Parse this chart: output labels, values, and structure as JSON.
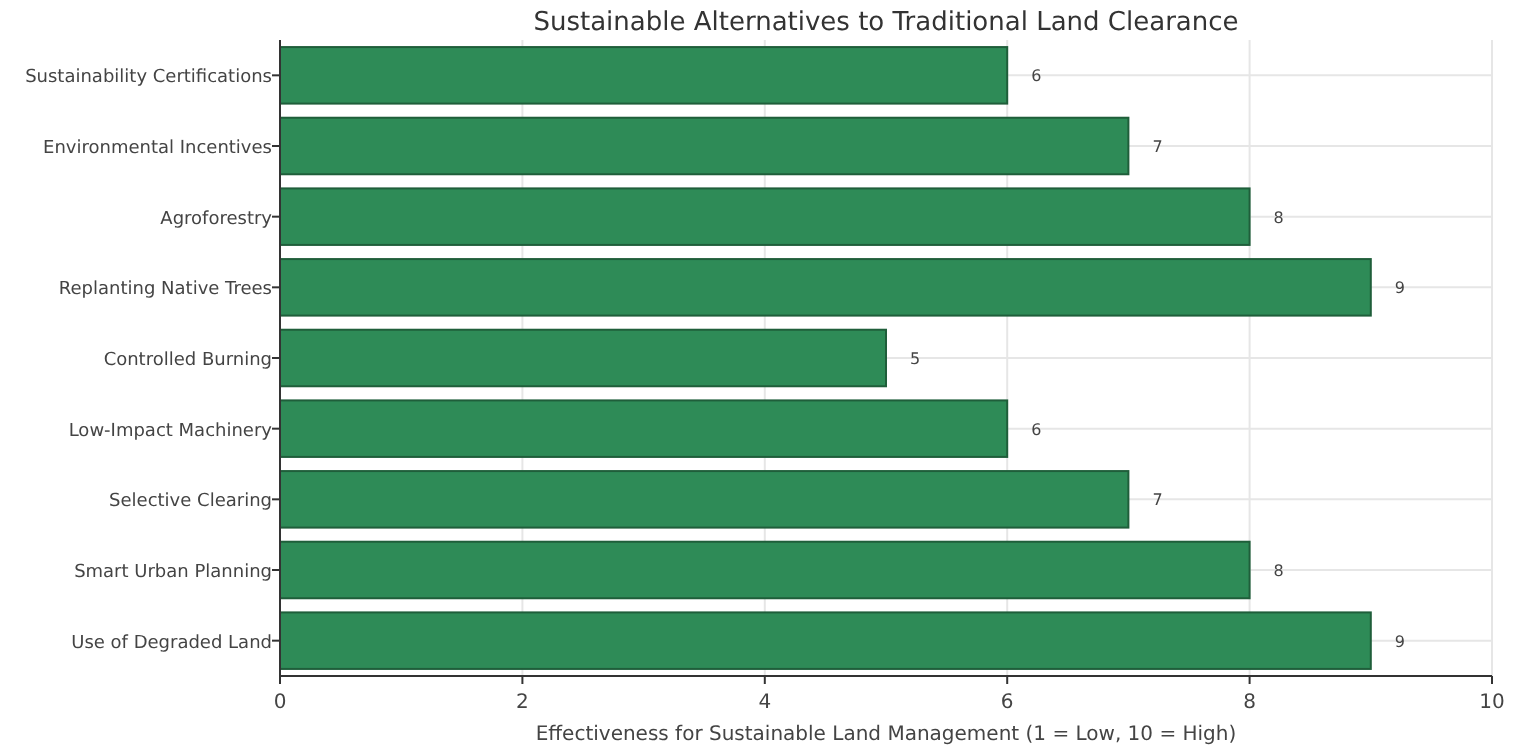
{
  "chart_data": {
    "type": "bar",
    "orientation": "horizontal",
    "title": "Sustainable Alternatives to Traditional Land Clearance",
    "xlabel": "Effectiveness for Sustainable Land Management (1 = Low, 10 = High)",
    "categories": [
      "Sustainability Certifications",
      "Environmental Incentives",
      "Agroforestry",
      "Replanting Native Trees",
      "Controlled Burning",
      "Low-Impact Machinery",
      "Selective Clearing",
      "Smart Urban Planning",
      "Use of Degraded Land"
    ],
    "values": [
      6,
      7,
      8,
      9,
      5,
      6,
      7,
      8,
      9
    ],
    "color": "#2e8b57",
    "xlim": [
      0,
      10
    ],
    "xticks": [
      0,
      2,
      4,
      6,
      8,
      10
    ],
    "grid": true,
    "data_labels": true
  }
}
